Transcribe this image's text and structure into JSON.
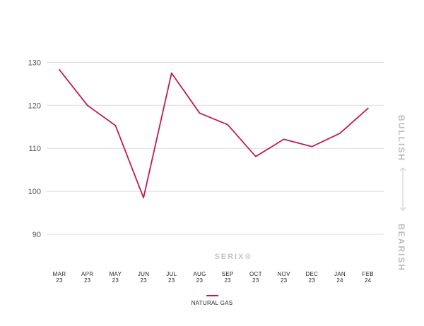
{
  "chart_data": {
    "type": "line",
    "x": [
      "MAR 23",
      "APR 23",
      "MAY 23",
      "JUN 23",
      "JUL 23",
      "AUG 23",
      "SEP 23",
      "OCT 23",
      "NOV 23",
      "DEC 23",
      "JAN 24",
      "FEB 24"
    ],
    "x_labels": [
      [
        "MAR",
        "23"
      ],
      [
        "APR",
        "23"
      ],
      [
        "MAY",
        "23"
      ],
      [
        "JUN",
        "23"
      ],
      [
        "JUL",
        "23"
      ],
      [
        "AUG",
        "23"
      ],
      [
        "SEP",
        "23"
      ],
      [
        "OCT",
        "23"
      ],
      [
        "NOV",
        "23"
      ],
      [
        "DEC",
        "23"
      ],
      [
        "JAN",
        "24"
      ],
      [
        "FEB",
        "24"
      ]
    ],
    "series": [
      {
        "name": "NATURAL GAS",
        "color": "#c2185b",
        "values": [
          128.3,
          120.0,
          115.3,
          98.5,
          127.5,
          118.2,
          115.5,
          108.1,
          112.1,
          110.4,
          113.5,
          119.3
        ]
      }
    ],
    "yticks": [
      90,
      100,
      110,
      120,
      130
    ],
    "ylim": [
      85,
      132
    ],
    "grid": true,
    "legend": "bottom-center",
    "side_labels": {
      "top": "BULLISH",
      "bottom": "BEARISH"
    },
    "watermark": "SERIX®",
    "grid_color": "#dddddd",
    "axis_text_color": "#555555"
  }
}
